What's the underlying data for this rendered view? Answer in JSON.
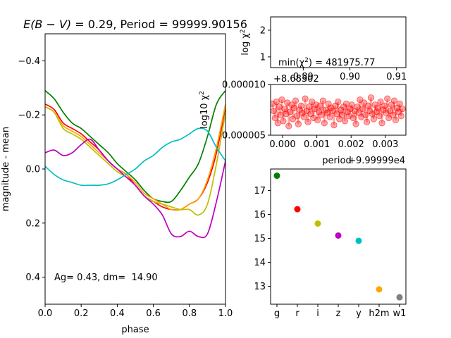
{
  "chart_data": [
    {
      "type": "line",
      "title": "E(B − V) = 0.29, Period = 99999.90156",
      "title_parts": {
        "italic": "E(B − V)",
        "rest": " = 0.29, Period = 99999.90156"
      },
      "xlabel": "phase",
      "ylabel": "magnitude - mean",
      "xlim": [
        0.0,
        1.0
      ],
      "ylim": [
        0.5,
        -0.5
      ],
      "y_inverted": true,
      "xticks": [
        0.0,
        0.2,
        0.4,
        0.6,
        0.8,
        1.0
      ],
      "xtick_labels": [
        "0.0",
        "0.2",
        "0.4",
        "0.6",
        "0.8",
        "1.0"
      ],
      "yticks": [
        -0.4,
        -0.2,
        0.0,
        0.2,
        0.4
      ],
      "ytick_labels": [
        "−0.4",
        "−0.2",
        "0.0",
        "0.2",
        "0.4"
      ],
      "annotation": "Ag= 0.43, dm=  14.90",
      "series": [
        {
          "color": "#008000",
          "x": [
            0.0,
            0.05,
            0.1,
            0.15,
            0.2,
            0.25,
            0.3,
            0.35,
            0.4,
            0.45,
            0.5,
            0.55,
            0.6,
            0.65,
            0.7,
            0.75,
            0.8,
            0.85,
            0.9,
            0.95,
            1.0
          ],
          "values": [
            -0.29,
            -0.26,
            -0.21,
            -0.17,
            -0.15,
            -0.12,
            -0.09,
            -0.06,
            -0.02,
            0.01,
            0.04,
            0.08,
            0.11,
            0.12,
            0.12,
            0.08,
            0.03,
            -0.02,
            -0.12,
            -0.24,
            -0.29
          ]
        },
        {
          "color": "#ff0000",
          "x": [
            0.0,
            0.05,
            0.1,
            0.15,
            0.2,
            0.25,
            0.3,
            0.35,
            0.4,
            0.45,
            0.5,
            0.55,
            0.6,
            0.65,
            0.7,
            0.75,
            0.8,
            0.85,
            0.9,
            0.95,
            1.0
          ],
          "values": [
            -0.24,
            -0.22,
            -0.17,
            -0.15,
            -0.13,
            -0.1,
            -0.07,
            -0.03,
            0.0,
            0.02,
            0.06,
            0.1,
            0.12,
            0.14,
            0.15,
            0.15,
            0.13,
            0.11,
            0.05,
            -0.06,
            -0.23
          ]
        },
        {
          "color": "#ffa500",
          "x": [
            0.0,
            0.05,
            0.1,
            0.15,
            0.2,
            0.25,
            0.3,
            0.35,
            0.4,
            0.45,
            0.5,
            0.55,
            0.6,
            0.65,
            0.7,
            0.75,
            0.8,
            0.85,
            0.9,
            0.95,
            1.0
          ],
          "values": [
            -0.23,
            -0.21,
            -0.16,
            -0.14,
            -0.12,
            -0.09,
            -0.06,
            -0.03,
            0.0,
            0.02,
            0.05,
            0.09,
            0.11,
            0.13,
            0.15,
            0.15,
            0.13,
            0.11,
            0.04,
            -0.08,
            -0.24
          ]
        },
        {
          "color": "#bfbf00",
          "x": [
            0.0,
            0.05,
            0.1,
            0.15,
            0.2,
            0.25,
            0.3,
            0.35,
            0.4,
            0.45,
            0.5,
            0.55,
            0.6,
            0.65,
            0.7,
            0.75,
            0.8,
            0.85,
            0.9,
            0.95,
            1.0
          ],
          "values": [
            -0.23,
            -0.21,
            -0.15,
            -0.13,
            -0.11,
            -0.08,
            -0.05,
            -0.02,
            0.01,
            0.03,
            0.06,
            0.1,
            0.12,
            0.13,
            0.14,
            0.15,
            0.15,
            0.17,
            0.13,
            -0.02,
            -0.21
          ]
        },
        {
          "color": "#bf00bf",
          "x": [
            0.0,
            0.05,
            0.1,
            0.15,
            0.2,
            0.25,
            0.3,
            0.35,
            0.4,
            0.45,
            0.5,
            0.55,
            0.6,
            0.65,
            0.7,
            0.75,
            0.8,
            0.85,
            0.9,
            0.95,
            1.0
          ],
          "values": [
            -0.06,
            -0.07,
            -0.05,
            -0.06,
            -0.09,
            -0.11,
            -0.07,
            -0.03,
            0.0,
            0.03,
            0.06,
            0.1,
            0.13,
            0.17,
            0.24,
            0.25,
            0.23,
            0.25,
            0.24,
            0.12,
            -0.03
          ]
        },
        {
          "color": "#00bfbf",
          "x": [
            0.0,
            0.05,
            0.1,
            0.15,
            0.2,
            0.25,
            0.3,
            0.35,
            0.4,
            0.45,
            0.5,
            0.55,
            0.6,
            0.65,
            0.7,
            0.75,
            0.8,
            0.85,
            0.9,
            0.95,
            1.0
          ],
          "values": [
            -0.01,
            0.02,
            0.04,
            0.05,
            0.06,
            0.06,
            0.06,
            0.055,
            0.04,
            0.02,
            0.0,
            -0.03,
            -0.05,
            -0.08,
            -0.1,
            -0.11,
            -0.13,
            -0.15,
            -0.14,
            -0.08,
            -0.03
          ]
        }
      ]
    },
    {
      "type": "line",
      "ylabel": "log χ²",
      "ylabel_parts": {
        "base": "log χ",
        "sup": "2"
      },
      "yticks": [
        1,
        2
      ],
      "ytick_labels": [
        "1",
        "2"
      ],
      "ylim": [
        0.6,
        2.5
      ],
      "xlim": [
        0.883,
        0.912
      ],
      "xticks": [
        0.89,
        0.9,
        0.91
      ],
      "xtick_labels": [
        "0.89",
        "0.90",
        "0.91"
      ],
      "offset_label": "+8.68302",
      "annotation": "min(χ²) = 481975.77",
      "annotation_parts": {
        "base": "min(χ",
        "sup": "2",
        "rest": ") = 481975.77"
      }
    },
    {
      "type": "scatter",
      "xlabel": "period",
      "x_offset_label": "+9.99999e4",
      "ylabel": "log10 χ²",
      "ylabel_parts": {
        "base": "log10 χ",
        "sup": "2"
      },
      "xlim": [
        -0.00035,
        0.0036
      ],
      "ylim": [
        5e-06,
        1e-05
      ],
      "xticks": [
        0.0,
        0.001,
        0.002,
        0.003
      ],
      "xtick_labels": [
        "0.000",
        "0.001",
        "0.002",
        "0.003"
      ],
      "yticks": [
        5e-06,
        1e-05
      ],
      "ytick_labels": [
        "0.000005",
        "0.000010"
      ],
      "color": "#ff0000",
      "x": [
        -0.0003,
        -0.00026,
        -0.00022,
        -0.00018,
        -0.00014,
        -0.0001,
        -6e-05,
        -2e-05,
        2e-05,
        6e-05,
        0.0001,
        0.00014,
        0.00018,
        0.00022,
        0.00026,
        0.0003,
        0.00034,
        0.00038,
        0.00042,
        0.00046,
        0.0005,
        0.00054,
        0.00058,
        0.00062,
        0.00066,
        0.0007,
        0.00074,
        0.00078,
        0.00082,
        0.00086,
        0.0009,
        0.00094,
        0.00098,
        0.00102,
        0.00106,
        0.0011,
        0.00114,
        0.00118,
        0.00122,
        0.00126,
        0.0013,
        0.00134,
        0.00138,
        0.00142,
        0.00146,
        0.0015,
        0.00154,
        0.00158,
        0.00162,
        0.00166,
        0.0017,
        0.00174,
        0.00178,
        0.00182,
        0.00186,
        0.0019,
        0.00194,
        0.00198,
        0.00202,
        0.00206,
        0.0021,
        0.00214,
        0.00218,
        0.00222,
        0.00226,
        0.0023,
        0.00234,
        0.00238,
        0.00242,
        0.00246,
        0.0025,
        0.00254,
        0.00258,
        0.00262,
        0.00266,
        0.0027,
        0.00274,
        0.00278,
        0.00282,
        0.00286,
        0.0029,
        0.00294,
        0.00298,
        0.00302,
        0.00306,
        0.0031,
        0.00314,
        0.00318,
        0.00322,
        0.00326,
        0.0033,
        0.00334,
        0.00338,
        0.00342,
        0.00346,
        0.0035
      ],
      "values": [
        8.1e-06,
        7.4e-06,
        6.7e-06,
        8.3e-06,
        6.2e-06,
        7.8e-06,
        7e-06,
        8.5e-06,
        6.4e-06,
        7.6e-06,
        7.1e-06,
        8.2e-06,
        5.9e-06,
        7.3e-06,
        8e-06,
        6.6e-06,
        7.7e-06,
        8.4e-06,
        6.9e-06,
        6.1e-06,
        7.5e-06,
        7.9e-06,
        7.2e-06,
        6.8e-06,
        8.6e-06,
        7.4e-06,
        6.3e-06,
        7.8e-06,
        7.1e-06,
        8.3e-06,
        6.7e-06,
        7.6e-06,
        8e-06,
        6.5e-06,
        7.3e-06,
        7.9e-06,
        7e-06,
        8.4e-06,
        6.2e-06,
        7.5e-06,
        7.2e-06,
        8.1e-06,
        6.8e-06,
        7.7e-06,
        7.4e-06,
        6e-06,
        7.9e-06,
        7.1e-06,
        8.3e-06,
        6.6e-06,
        7.5e-06,
        7e-06,
        7.8e-06,
        6.4e-06,
        8.1e-06,
        7.3e-06,
        6.9e-06,
        7.6e-06,
        8e-06,
        6.7e-06,
        7.4e-06,
        6.1e-06,
        7.8e-06,
        7.2e-06,
        8.5e-06,
        6.8e-06,
        7.6e-06,
        8.2e-06,
        7e-06,
        6.3e-06,
        7.9e-06,
        7.4e-06,
        8.7e-06,
        7.1e-06,
        6.6e-06,
        8e-06,
        7.3e-06,
        7.7e-06,
        6.9e-06,
        8.3e-06,
        6.2e-06,
        7.5e-06,
        7.9e-06,
        7.2e-06,
        8.6e-06,
        6.7e-06,
        7.4e-06,
        8e-06,
        7e-06,
        8.4e-06,
        6.5e-06,
        7.7e-06,
        7.3e-06,
        8.1e-06,
        6.9e-06,
        7.6e-06
      ]
    },
    {
      "type": "scatter",
      "categories": [
        "g",
        "r",
        "i",
        "z",
        "y",
        "h2m",
        "w1"
      ],
      "values": [
        17.62,
        16.22,
        15.62,
        15.12,
        14.9,
        12.87,
        12.54
      ],
      "colors": [
        "#008000",
        "#ff0000",
        "#bfbf00",
        "#bf00bf",
        "#00bfbf",
        "#ffa500",
        "#808080"
      ],
      "ylim": [
        12.25,
        17.9
      ],
      "yticks": [
        13,
        14,
        15,
        16,
        17
      ],
      "ytick_labels": [
        "13",
        "14",
        "15",
        "16",
        "17"
      ]
    }
  ]
}
